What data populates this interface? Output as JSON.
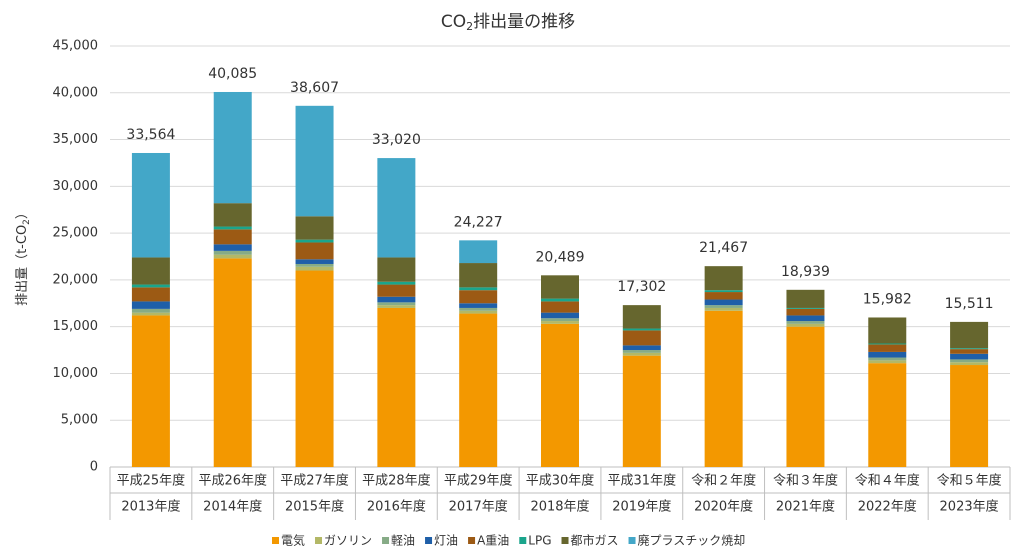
{
  "chart_data": {
    "type": "bar",
    "stacked": true,
    "title": {
      "parts": [
        "CO",
        "2",
        "排出量の推移"
      ]
    },
    "y_label": {
      "parts": [
        "排出量（t-CO",
        "2",
        "）"
      ]
    },
    "categories": [
      [
        "平成25年度",
        "2013年度"
      ],
      [
        "平成26年度",
        "2014年度"
      ],
      [
        "平成27年度",
        "2015年度"
      ],
      [
        "平成28年度",
        "2016年度"
      ],
      [
        "平成29年度",
        "2017年度"
      ],
      [
        "平成30年度",
        "2018年度"
      ],
      [
        "平成31年度",
        "2019年度"
      ],
      [
        "令和２年度",
        "2020年度"
      ],
      [
        "令和３年度",
        "2021年度"
      ],
      [
        "令和４年度",
        "2022年度"
      ],
      [
        "令和５年度",
        "2023年度"
      ]
    ],
    "series": [
      {
        "name": "電気",
        "color": "#f39800",
        "values": [
          16200,
          22300,
          21000,
          17000,
          16400,
          15300,
          11900,
          16700,
          15000,
          11100,
          10900
        ]
      },
      {
        "name": "ガソリン",
        "color": "#b3b866",
        "values": [
          300,
          400,
          400,
          300,
          300,
          300,
          300,
          300,
          300,
          300,
          300
        ]
      },
      {
        "name": "軽油",
        "color": "#86ab86",
        "values": [
          400,
          400,
          300,
          300,
          300,
          300,
          300,
          300,
          300,
          300,
          300
        ]
      },
      {
        "name": "灯油",
        "color": "#1f5fa8",
        "values": [
          800,
          700,
          500,
          600,
          500,
          600,
          500,
          600,
          600,
          600,
          600
        ]
      },
      {
        "name": "A重油",
        "color": "#9c5a14",
        "values": [
          1500,
          1600,
          1800,
          1300,
          1400,
          1200,
          1600,
          800,
          700,
          800,
          500
        ]
      },
      {
        "name": "LPG",
        "color": "#1aa58c",
        "values": [
          300,
          300,
          300,
          300,
          300,
          300,
          200,
          200,
          100,
          100,
          100
        ]
      },
      {
        "name": "都市ガス",
        "color": "#66662e",
        "values": [
          2900,
          2500,
          2500,
          2600,
          2600,
          2489,
          2502,
          2567,
          1939,
          2782,
          2811
        ]
      },
      {
        "name": "廃プラスチック焼却",
        "color": "#43a7c8",
        "values": [
          11164,
          11885,
          11807,
          10620,
          2427,
          0,
          0,
          0,
          0,
          0,
          0
        ]
      }
    ],
    "totals": {
      "values": [
        33564,
        40085,
        38607,
        33020,
        24227,
        20489,
        17302,
        21467,
        18939,
        15982,
        15511
      ],
      "value_labels": [
        "33,564",
        "40,085",
        "38,607",
        "33,020",
        "24,227",
        "20,489",
        "17,302",
        "21,467",
        "18,939",
        "15,982",
        "15,511"
      ]
    },
    "ylim": [
      0,
      45000
    ],
    "yticks": [
      0,
      {
        "value": 5000,
        "label": "5,000"
      },
      {
        "value": 10000,
        "label": "10,000"
      },
      {
        "value": 15000,
        "label": "15,000"
      },
      {
        "value": 20000,
        "label": "20,000"
      },
      {
        "value": 25000,
        "label": "25,000"
      },
      {
        "value": 30000,
        "label": "30,000"
      },
      {
        "value": 35000,
        "label": "35,000"
      },
      {
        "value": 40000,
        "label": "40,000"
      },
      {
        "value": 45000,
        "label": "45,000"
      }
    ],
    "grid": true,
    "legend": "bottom"
  }
}
